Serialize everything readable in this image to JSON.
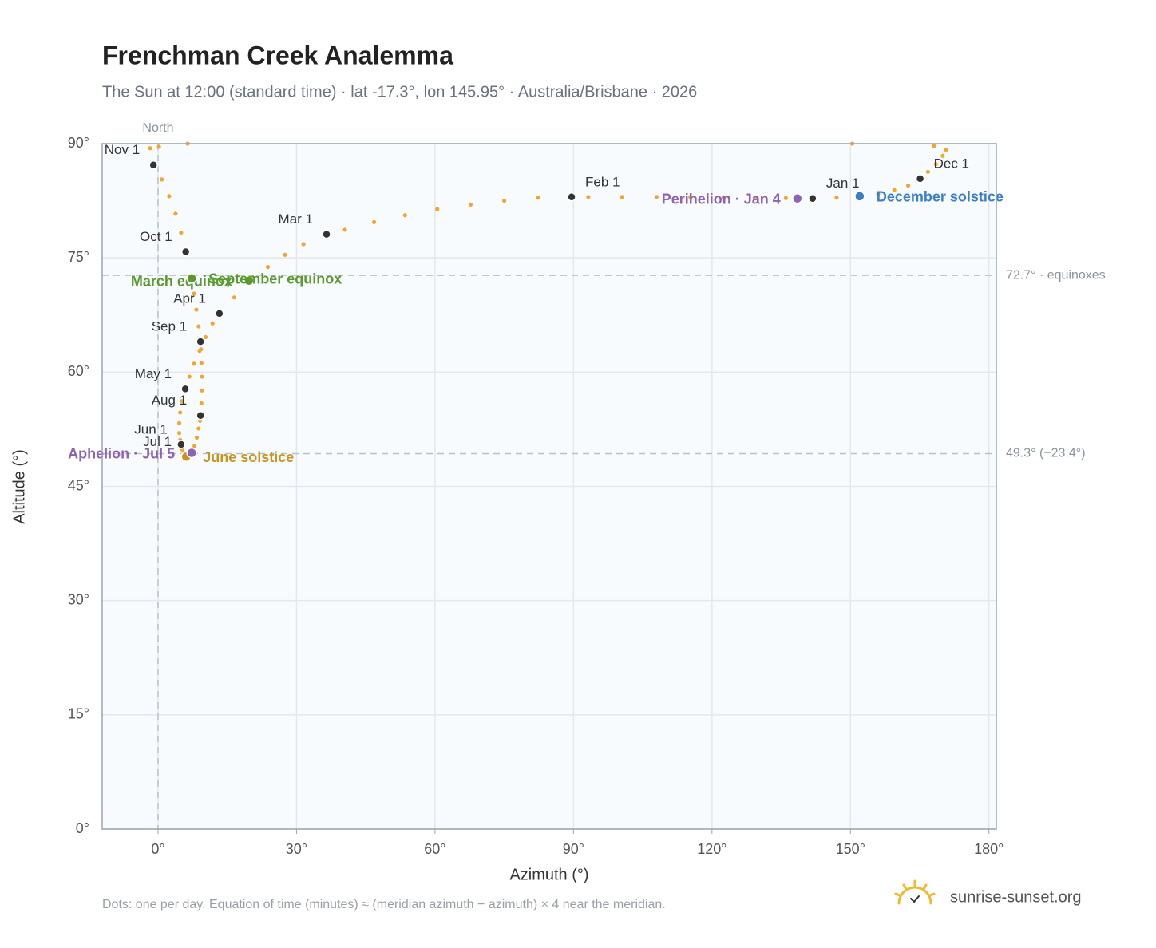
{
  "chart_data": {
    "type": "scatter",
    "title": "Frenchman Creek Analemma",
    "subtitle": "The Sun at 12:00 (standard time) · lat -17.3°, lon 145.95° · Australia/Brisbane · 2026",
    "x_label": "Azimuth (°)",
    "y_label": "Altitude (°)",
    "xlim": [
      -12.1,
      181.6
    ],
    "ylim": [
      0,
      90
    ],
    "xticks": [
      {
        "value": 0,
        "label": "0°"
      },
      {
        "value": 30,
        "label": "30°"
      },
      {
        "value": 60,
        "label": "60°"
      },
      {
        "value": 90,
        "label": "90°"
      },
      {
        "value": 120,
        "label": "120°"
      },
      {
        "value": 150,
        "label": "150°"
      },
      {
        "value": 180,
        "label": "180°"
      }
    ],
    "yticks": [
      {
        "value": 0,
        "label": "0°"
      },
      {
        "value": 15,
        "label": "15°"
      },
      {
        "value": 30,
        "label": "30°"
      },
      {
        "value": 45,
        "label": "45°"
      },
      {
        "value": 60,
        "label": "60°"
      },
      {
        "value": 75,
        "label": "75°"
      },
      {
        "value": 90,
        "label": "90°"
      }
    ],
    "grid": true,
    "color": "#f2a630",
    "x": [
      141.8,
      136.0,
      129.5,
      122.5,
      115.3,
      108.0,
      100.5,
      93.2,
      89.6,
      82.3,
      75.0,
      67.7,
      60.5,
      53.5,
      46.8,
      40.5,
      36.5,
      31.5,
      27.5,
      23.8,
      19.7,
      16.5,
      13.3,
      11.8,
      10.3,
      9.0,
      7.8,
      6.8,
      5.9,
      5.2,
      4.8,
      4.6,
      4.6,
      4.8,
      5.0,
      5.3,
      5.6,
      6.1,
      6.5,
      6.9,
      7.3,
      7.9,
      8.4,
      8.8,
      9.1,
      9.2,
      9.4,
      9.5,
      9.5,
      9.4,
      9.3,
      9.2,
      8.8,
      8.3,
      7.8,
      7.3,
      6.0,
      5.0,
      3.8,
      2.4,
      0.8,
      -1.0,
      -1.7,
      0.2,
      6.4,
      150.4,
      168.1,
      170.7,
      170.0,
      168.5,
      166.8,
      165.1,
      162.5,
      159.5,
      156.0,
      152.0,
      147.0
    ],
    "values": [
      82.8,
      82.85,
      82.9,
      82.95,
      83.0,
      83.0,
      83.0,
      83.0,
      83.0,
      82.9,
      82.5,
      82.0,
      81.4,
      80.6,
      79.7,
      78.7,
      78.1,
      76.8,
      75.4,
      73.8,
      72.0,
      69.8,
      67.7,
      66.4,
      64.6,
      62.8,
      61.1,
      59.4,
      57.8,
      56.2,
      54.7,
      53.3,
      52.0,
      51.1,
      50.5,
      49.8,
      49.3,
      48.9,
      48.95,
      49.1,
      49.4,
      50.3,
      51.4,
      52.6,
      53.6,
      54.3,
      55.9,
      57.6,
      59.4,
      61.2,
      63.0,
      64.0,
      66.0,
      68.2,
      70.3,
      72.3,
      75.8,
      78.3,
      80.8,
      83.1,
      85.3,
      87.2,
      89.4,
      89.6,
      90.0,
      90.0,
      89.7,
      89.2,
      88.4,
      87.3,
      86.3,
      85.4,
      84.5,
      83.9,
      83.4,
      83.1,
      82.9
    ],
    "markers": [
      {
        "label": "Jan 1",
        "x": 141.8,
        "y": 82.8
      },
      {
        "label": "Feb 1",
        "x": 89.6,
        "y": 83.0
      },
      {
        "label": "Mar 1",
        "x": 36.5,
        "y": 78.1
      },
      {
        "label": "Apr 1",
        "x": 13.3,
        "y": 67.7
      },
      {
        "label": "May 1",
        "x": 5.9,
        "y": 57.8
      },
      {
        "label": "Jun 1",
        "x": 5.0,
        "y": 50.5
      },
      {
        "label": "Jul 1",
        "x": 5.9,
        "y": 48.9
      },
      {
        "label": "Aug 1",
        "x": 9.2,
        "y": 54.3
      },
      {
        "label": "Sep 1",
        "x": 9.2,
        "y": 64.0
      },
      {
        "label": "Oct 1",
        "x": 6.0,
        "y": 75.8
      },
      {
        "label": "Nov 1",
        "x": -1.0,
        "y": 87.2
      },
      {
        "label": "Dec 1",
        "x": 165.1,
        "y": 85.4
      }
    ],
    "events": [
      {
        "label": "December solstice",
        "x": 152.0,
        "y": 83.1,
        "color": "#3b7ec9",
        "side": "right"
      },
      {
        "label": "Perihelion · Jan 4",
        "x": 138.5,
        "y": 82.8,
        "color": "#8e63b5",
        "side": "left"
      },
      {
        "label": "March equinox",
        "x": 19.7,
        "y": 72.0,
        "color": "#5a9a2e",
        "side": "left"
      },
      {
        "label": "September equinox",
        "x": 7.3,
        "y": 72.3,
        "color": "#5a9a2e",
        "side": "right"
      },
      {
        "label": "June solstice",
        "x": 6.1,
        "y": 48.9,
        "color": "#c8961e",
        "side": "right"
      },
      {
        "label": "Aphelion · Jul 5",
        "x": 7.3,
        "y": 49.4,
        "color": "#8e63b5",
        "side": "left"
      }
    ],
    "hlines": [
      {
        "value": 72.7,
        "label": "72.7° · equinoxes"
      },
      {
        "value": 49.3,
        "label": "49.3° (−23.4°)"
      }
    ],
    "vline": {
      "value": 0,
      "label": "North"
    },
    "footnote": "Dots: one per day. Equation of time (minutes) ≈ (meridian azimuth − azimuth) × 4 near the meridian.",
    "brand": "sunrise-sunset.org"
  }
}
